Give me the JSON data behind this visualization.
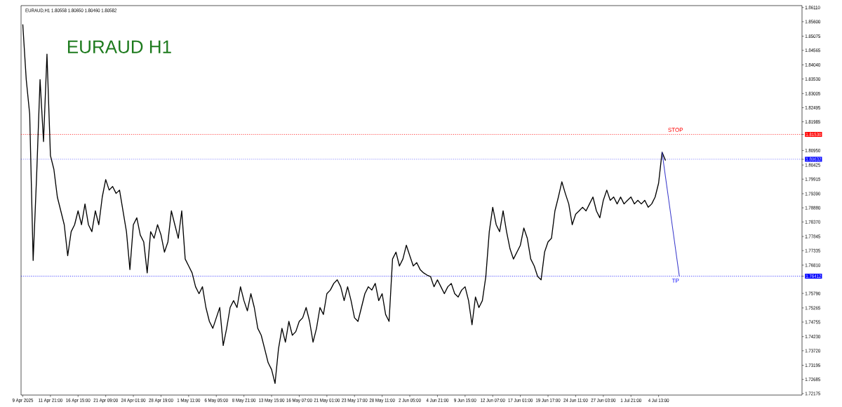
{
  "chart_data": {
    "type": "line",
    "title": "EURAUD H1",
    "subtitle": "EURAUD,H1  1.80558 1.80650 1.80460 1.80582",
    "categories": [
      "9 Apr 2025",
      null,
      null,
      null,
      null,
      null,
      null,
      null,
      "11 Apr 21:00",
      null,
      null,
      null,
      null,
      null,
      null,
      null,
      "16 Apr 15:00",
      null,
      null,
      null,
      null,
      null,
      null,
      null,
      "21 Apr 09:00",
      null,
      null,
      null,
      null,
      null,
      null,
      null,
      "24 Apr 01:00",
      null,
      null,
      null,
      null,
      null,
      null,
      null,
      "28 Apr 19:00",
      null,
      null,
      null,
      null,
      null,
      null,
      null,
      "1 May 11:00",
      null,
      null,
      null,
      null,
      null,
      null,
      null,
      "6 May 05:00",
      null,
      null,
      null,
      null,
      null,
      null,
      null,
      "8 May 21:00",
      null,
      null,
      null,
      null,
      null,
      null,
      null,
      "13 May 15:00",
      null,
      null,
      null,
      null,
      null,
      null,
      null,
      "16 May 07:00",
      null,
      null,
      null,
      null,
      null,
      null,
      null,
      "21 May 01:00",
      null,
      null,
      null,
      null,
      null,
      null,
      null,
      "23 May 17:00",
      null,
      null,
      null,
      null,
      null,
      null,
      null,
      "28 May 11:00",
      null,
      null,
      null,
      null,
      null,
      null,
      null,
      "2 Jun 05:00",
      null,
      null,
      null,
      null,
      null,
      null,
      null,
      "4 Jun 21:00",
      null,
      null,
      null,
      null,
      null,
      null,
      null,
      "9 Jun 15:00",
      null,
      null,
      null,
      null,
      null,
      null,
      null,
      "12 Jun 07:00",
      null,
      null,
      null,
      null,
      null,
      null,
      null,
      "17 Jun 01:00",
      null,
      null,
      null,
      null,
      null,
      null,
      null,
      "19 Jun 17:00",
      null,
      null,
      null,
      null,
      null,
      null,
      null,
      "24 Jun 11:00",
      null,
      null,
      null,
      null,
      null,
      null,
      null,
      "27 Jun 03:00",
      null,
      null,
      null,
      null,
      null,
      null,
      null,
      "1 Jul 21:00",
      null,
      null,
      null,
      null,
      null,
      null,
      null,
      "4 Jul 13:00",
      null,
      null,
      null,
      null,
      null,
      null,
      null,
      null,
      null,
      null,
      null,
      null,
      null,
      null,
      null,
      null,
      null,
      null,
      null,
      null,
      null,
      null,
      null,
      null,
      null,
      null,
      null,
      null,
      null,
      null,
      null,
      null,
      null,
      null,
      null,
      null,
      null,
      null,
      null,
      null,
      null
    ],
    "series": [
      {
        "color": "#000000",
        "values": [
          1.855,
          1.8351,
          1.8226,
          1.7698,
          1.8002,
          1.8351,
          1.8127,
          1.8443,
          1.8077,
          1.8027,
          1.7927,
          1.7877,
          1.7827,
          1.7715,
          1.7802,
          1.7827,
          1.7877,
          1.7827,
          1.7902,
          1.7827,
          1.7802,
          1.7877,
          1.7827,
          1.7927,
          1.799,
          1.7952,
          1.7965,
          1.794,
          1.7952,
          1.7877,
          1.7802,
          1.7665,
          1.7827,
          1.7852,
          1.779,
          1.7765,
          1.7653,
          1.7802,
          1.7778,
          1.7827,
          1.779,
          1.7728,
          1.7765,
          1.7877,
          1.7827,
          1.7778,
          1.7877,
          1.7703,
          1.7678,
          1.7653,
          1.7603,
          1.7578,
          1.7603,
          1.7528,
          1.7478,
          1.7453,
          1.7491,
          1.7528,
          1.7391,
          1.7453,
          1.7528,
          1.7553,
          1.7528,
          1.7603,
          1.7553,
          1.7516,
          1.7578,
          1.7528,
          1.7453,
          1.7428,
          1.7379,
          1.7329,
          1.7304,
          1.7254,
          1.7379,
          1.7453,
          1.7403,
          1.7478,
          1.7428,
          1.7441,
          1.7478,
          1.7491,
          1.7528,
          1.7478,
          1.7403,
          1.7453,
          1.7528,
          1.7503,
          1.7578,
          1.7591,
          1.7615,
          1.7628,
          1.7603,
          1.7553,
          1.7603,
          1.7553,
          1.7491,
          1.7478,
          1.7528,
          1.7578,
          1.7603,
          1.7591,
          1.7615,
          1.7553,
          1.7578,
          1.7503,
          1.7478,
          1.7703,
          1.7728,
          1.7678,
          1.7703,
          1.7753,
          1.7715,
          1.7678,
          1.769,
          1.7665,
          1.7653,
          1.7645,
          1.764,
          1.7603,
          1.7628,
          1.7603,
          1.7578,
          1.7603,
          1.7615,
          1.7578,
          1.7566,
          1.7591,
          1.7603,
          1.7553,
          1.7466,
          1.7566,
          1.7528,
          1.7553,
          1.764,
          1.7802,
          1.789,
          1.7827,
          1.7802,
          1.7877,
          1.7802,
          1.774,
          1.7703,
          1.7728,
          1.7753,
          1.7815,
          1.7778,
          1.7703,
          1.7678,
          1.764,
          1.7628,
          1.7728,
          1.7765,
          1.7778,
          1.7877,
          1.7927,
          1.7982,
          1.794,
          1.7902,
          1.7827,
          1.7865,
          1.7877,
          1.789,
          1.7877,
          1.7902,
          1.7927,
          1.7877,
          1.7852,
          1.7915,
          1.7952,
          1.7915,
          1.7927,
          1.7902,
          1.7927,
          1.7902,
          1.7915,
          1.7927,
          1.7902,
          1.7915,
          1.7902,
          1.7915,
          1.789,
          1.7902,
          1.7927,
          1.7977,
          1.8089,
          1.8059,
          null,
          null,
          null,
          null,
          null,
          null,
          null,
          null,
          null,
          null,
          null,
          null,
          null,
          null,
          null,
          null,
          null,
          null,
          null,
          null,
          null,
          null,
          null,
          null,
          null,
          null,
          null,
          null,
          null,
          null,
          null,
          null,
          null,
          null,
          null,
          null,
          null,
          null,
          null
        ]
      },
      {
        "type": "line",
        "color": "#3c3ccc",
        "values": [
          null,
          null,
          null,
          null,
          null,
          null,
          null,
          null,
          null,
          null,
          null,
          null,
          null,
          null,
          null,
          null,
          null,
          null,
          null,
          null,
          null,
          null,
          null,
          null,
          null,
          null,
          null,
          null,
          null,
          null,
          null,
          null,
          null,
          null,
          null,
          null,
          null,
          null,
          null,
          null,
          null,
          null,
          null,
          null,
          null,
          null,
          null,
          null,
          null,
          null,
          null,
          null,
          null,
          null,
          null,
          null,
          null,
          null,
          null,
          null,
          null,
          null,
          null,
          null,
          null,
          null,
          null,
          null,
          null,
          null,
          null,
          null,
          null,
          null,
          null,
          null,
          null,
          null,
          null,
          null,
          null,
          null,
          null,
          null,
          null,
          null,
          null,
          null,
          null,
          null,
          null,
          null,
          null,
          null,
          null,
          null,
          null,
          null,
          null,
          null,
          null,
          null,
          null,
          null,
          null,
          null,
          null,
          null,
          null,
          null,
          null,
          null,
          null,
          null,
          null,
          null,
          null,
          null,
          null,
          null,
          null,
          null,
          null,
          null,
          null,
          null,
          null,
          null,
          null,
          null,
          null,
          null,
          null,
          null,
          null,
          null,
          null,
          null,
          null,
          null,
          null,
          null,
          null,
          null,
          null,
          null,
          null,
          null,
          null,
          null,
          null,
          null,
          null,
          null,
          null,
          null,
          null,
          null,
          null,
          null,
          null,
          null,
          null,
          null,
          null,
          null,
          null,
          null,
          null,
          null,
          null,
          null,
          null,
          null,
          null,
          null,
          null,
          null,
          null,
          null,
          null,
          null,
          null,
          null,
          null,
          1.8089,
          1.7999,
          1.791,
          1.782,
          1.773,
          1.7641,
          null,
          null,
          null,
          null,
          null,
          null,
          null,
          null,
          null,
          null,
          null,
          null,
          null,
          null,
          null,
          null,
          null,
          null,
          null,
          null,
          null,
          null,
          null,
          null,
          null,
          null,
          null,
          null,
          null,
          null,
          null,
          null,
          null,
          null,
          null
        ]
      }
    ],
    "ylim": [
      1.7212,
      1.8618
    ],
    "yticks": [
      {
        "value": 1.8611,
        "label": "1.86110"
      },
      {
        "value": 1.856,
        "label": "1.85600"
      },
      {
        "value": 1.85075,
        "label": "1.85075"
      },
      {
        "value": 1.84565,
        "label": "1.84565"
      },
      {
        "value": 1.8404,
        "label": "1.84040"
      },
      {
        "value": 1.8353,
        "label": "1.83530"
      },
      {
        "value": 1.83005,
        "label": "1.83005"
      },
      {
        "value": 1.82495,
        "label": "1.82495"
      },
      {
        "value": 1.81985,
        "label": "1.81985"
      },
      {
        "value": 1.8153,
        "label": "1.81530"
      },
      {
        "value": 1.8095,
        "label": "1.80950"
      },
      {
        "value": 1.80632,
        "label": "1.80632"
      },
      {
        "value": 1.80425,
        "label": "1.80425"
      },
      {
        "value": 1.79915,
        "label": "1.79915"
      },
      {
        "value": 1.7939,
        "label": "1.79390"
      },
      {
        "value": 1.7888,
        "label": "1.78880"
      },
      {
        "value": 1.7837,
        "label": "1.78370"
      },
      {
        "value": 1.77845,
        "label": "1.77845"
      },
      {
        "value": 1.77335,
        "label": "1.77335"
      },
      {
        "value": 1.7681,
        "label": "1.76810"
      },
      {
        "value": 1.76412,
        "label": "1.76412"
      },
      {
        "value": 1.7579,
        "label": "1.75790"
      },
      {
        "value": 1.75265,
        "label": "1.75265"
      },
      {
        "value": 1.74755,
        "label": "1.74755"
      },
      {
        "value": 1.7423,
        "label": "1.74230"
      },
      {
        "value": 1.7372,
        "label": "1.73720"
      },
      {
        "value": 1.73195,
        "label": "1.73195"
      },
      {
        "value": 1.72685,
        "label": "1.72685"
      },
      {
        "value": 1.72175,
        "label": "1.72175"
      }
    ],
    "ref_lines": [
      {
        "axis": "y",
        "value": 1.8153,
        "label": "STOP",
        "color": "#ff0000",
        "line_style": "dotted"
      },
      {
        "axis": "y",
        "value": 1.80632,
        "color": "#0000ff",
        "line_style": "dotted"
      },
      {
        "axis": "y",
        "value": 1.76412,
        "label": "TP",
        "color": "#0000ff",
        "line_style": "dotted"
      }
    ]
  }
}
